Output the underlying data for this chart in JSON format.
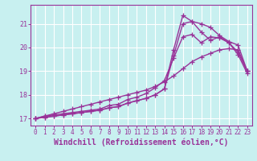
{
  "xlabel": "Windchill (Refroidissement éolien,°C)",
  "bg_color": "#c8f0f0",
  "line_color": "#993399",
  "grid_color": "#ffffff",
  "xlim": [
    -0.5,
    23.5
  ],
  "ylim": [
    16.7,
    21.8
  ],
  "xticks": [
    0,
    1,
    2,
    3,
    4,
    5,
    6,
    7,
    8,
    9,
    10,
    11,
    12,
    13,
    14,
    15,
    16,
    17,
    18,
    19,
    20,
    21,
    22,
    23
  ],
  "yticks": [
    17,
    18,
    19,
    20,
    21
  ],
  "curve1_x": [
    0,
    1,
    2,
    3,
    4,
    5,
    6,
    7,
    8,
    9,
    10,
    11,
    12,
    13,
    14,
    15,
    16,
    17,
    18,
    19,
    20,
    21,
    22,
    23
  ],
  "curve1_y": [
    17.0,
    17.05,
    17.1,
    17.15,
    17.2,
    17.25,
    17.3,
    17.35,
    17.45,
    17.5,
    17.65,
    17.75,
    17.85,
    18.0,
    18.25,
    19.9,
    21.35,
    21.1,
    20.65,
    20.3,
    20.45,
    20.2,
    19.7,
    18.9
  ],
  "curve2_x": [
    0,
    1,
    2,
    3,
    4,
    5,
    6,
    7,
    8,
    9,
    10,
    11,
    12,
    13,
    14,
    15,
    16,
    17,
    18,
    19,
    20,
    21,
    22,
    23
  ],
  "curve2_y": [
    17.0,
    17.05,
    17.1,
    17.15,
    17.2,
    17.25,
    17.3,
    17.35,
    17.45,
    17.5,
    17.65,
    17.75,
    17.85,
    18.0,
    18.25,
    19.65,
    21.0,
    21.1,
    21.0,
    20.85,
    20.5,
    20.25,
    20.1,
    19.0
  ],
  "curve3_x": [
    0,
    1,
    2,
    3,
    4,
    5,
    6,
    7,
    8,
    9,
    10,
    11,
    12,
    13,
    14,
    15,
    16,
    17,
    18,
    19,
    20,
    21,
    22,
    23
  ],
  "curve3_y": [
    17.0,
    17.1,
    17.15,
    17.2,
    17.25,
    17.3,
    17.35,
    17.4,
    17.55,
    17.6,
    17.8,
    17.9,
    18.05,
    18.3,
    18.6,
    19.55,
    20.45,
    20.55,
    20.2,
    20.45,
    20.4,
    20.2,
    19.8,
    19.0
  ],
  "curve4_x": [
    0,
    1,
    2,
    3,
    4,
    5,
    6,
    7,
    8,
    9,
    10,
    11,
    12,
    13,
    14,
    15,
    16,
    17,
    18,
    19,
    20,
    21,
    22,
    23
  ],
  "curve4_y": [
    17.0,
    17.1,
    17.2,
    17.3,
    17.4,
    17.5,
    17.6,
    17.7,
    17.8,
    17.9,
    18.0,
    18.1,
    18.2,
    18.35,
    18.55,
    18.8,
    19.1,
    19.4,
    19.6,
    19.75,
    19.9,
    19.95,
    19.9,
    19.0
  ],
  "marker": "+",
  "markersize": 4,
  "linewidth": 1.0,
  "tick_fontsize": 5.5,
  "xlabel_fontsize": 7.0
}
